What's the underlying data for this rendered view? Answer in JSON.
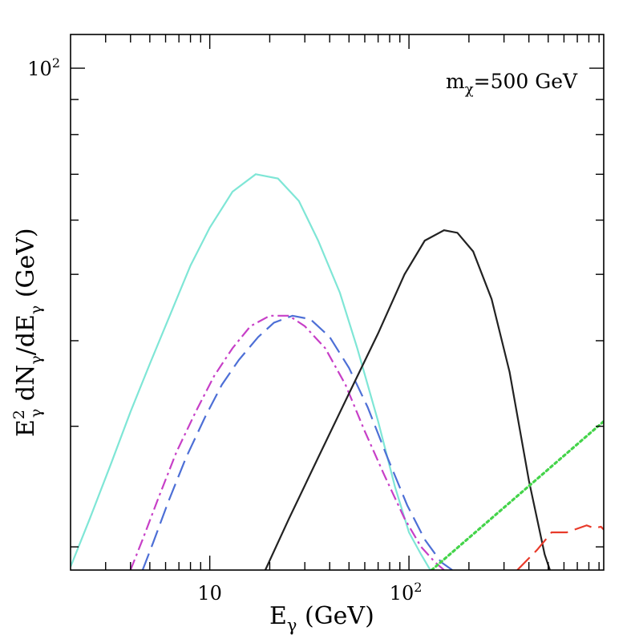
{
  "chart_data": {
    "type": "line",
    "xscale": "log",
    "yscale": "log",
    "xlim": [
      2.0,
      950
    ],
    "ylim": [
      18.5,
      112
    ],
    "xlabel": "E",
    "xlabel_sub": "γ",
    "xlabel_unit": " (GeV)",
    "ylabel_parts": {
      "e": "E",
      "e_sup": "2",
      "e_sub": "γ",
      "dn": " dN",
      "dn_sub": "γ",
      "slash": "/dE",
      "de_sub": "γ",
      "unit": " (GeV)"
    },
    "annotation": {
      "m": "m",
      "sub": "χ",
      "rest": "=500 GeV"
    },
    "x_ticks_major": [
      {
        "value": 10,
        "base": "10",
        "exp": ""
      },
      {
        "value": 100,
        "base": "10",
        "exp": "2"
      }
    ],
    "y_ticks_major": [
      {
        "value": 100,
        "base": "10",
        "exp": "2"
      }
    ],
    "x_ticks_minor": [
      3,
      4,
      5,
      6,
      7,
      8,
      9,
      20,
      30,
      40,
      50,
      60,
      70,
      80,
      90,
      200,
      300,
      400,
      500,
      600,
      700,
      800,
      900
    ],
    "y_ticks_minor": [
      20,
      30,
      40,
      50,
      60,
      70,
      80,
      90
    ],
    "series": [
      {
        "name": "cyan-solid",
        "color": "#7fe6d6",
        "style": "solid",
        "x": [
          2.0,
          2.5,
          3.2,
          4.0,
          5.0,
          6.5,
          8.0,
          10.0,
          13.0,
          17.0,
          22.0,
          28.0,
          35.0,
          45.0,
          55.0,
          70.0,
          85.0,
          100.0,
          115.0,
          128.0
        ],
        "y": [
          18.7,
          22.0,
          26.5,
          31.5,
          37.0,
          44.5,
          51.5,
          58.5,
          66.0,
          70.0,
          69.0,
          64.0,
          56.0,
          47.0,
          39.0,
          30.5,
          24.5,
          21.0,
          19.5,
          18.5
        ]
      },
      {
        "name": "magenta-dash-dot",
        "color": "#c73fc7",
        "style": "dashdot",
        "x": [
          4.0,
          4.6,
          5.5,
          6.8,
          8.5,
          10.5,
          13.0,
          16.0,
          20.0,
          25.0,
          30.0,
          38.0,
          48.0,
          60.0,
          75.0,
          95.0,
          115.0,
          135.0,
          150.0
        ],
        "y": [
          18.5,
          20.5,
          23.5,
          27.5,
          31.5,
          35.5,
          39.0,
          42.0,
          43.5,
          43.5,
          42.0,
          39.0,
          34.5,
          29.5,
          25.5,
          22.0,
          20.0,
          19.0,
          18.5
        ]
      },
      {
        "name": "blue-long-dash",
        "color": "#4d6fd6",
        "style": "dash",
        "x": [
          4.6,
          5.2,
          6.2,
          7.6,
          9.5,
          11.5,
          14.0,
          17.5,
          21.0,
          26.0,
          32.0,
          40.0,
          50.0,
          62.0,
          78.0,
          98.0,
          120.0,
          145.0,
          165.0
        ],
        "y": [
          18.5,
          20.3,
          23.3,
          27.0,
          31.0,
          34.5,
          37.5,
          40.5,
          42.5,
          43.5,
          43.0,
          40.5,
          36.5,
          32.0,
          27.0,
          23.0,
          20.5,
          19.0,
          18.5
        ]
      },
      {
        "name": "black-solid",
        "color": "#222222",
        "style": "solid",
        "x": [
          19.0,
          25.0,
          35.0,
          50.0,
          70.0,
          95.0,
          120.0,
          150.0,
          175.0,
          210.0,
          260.0,
          320.0,
          400.0,
          480.0,
          510.0
        ],
        "y": [
          18.5,
          22.0,
          27.0,
          33.5,
          41.0,
          50.0,
          56.0,
          58.0,
          57.5,
          54.0,
          46.0,
          36.0,
          25.0,
          19.5,
          18.5
        ]
      },
      {
        "name": "green-dotted",
        "color": "#44d44a",
        "style": "dotted",
        "x": [
          130.0,
          950.0
        ],
        "y": [
          18.5,
          30.5
        ]
      },
      {
        "name": "red-dashed",
        "color": "#e83a2a",
        "style": "dash",
        "x": [
          350.0,
          440.0,
          520.0,
          620.0,
          780.0,
          850.0,
          920.0,
          950.0
        ],
        "y": [
          18.5,
          19.8,
          21.0,
          21.0,
          21.5,
          21.3,
          21.4,
          21.2
        ]
      }
    ]
  }
}
